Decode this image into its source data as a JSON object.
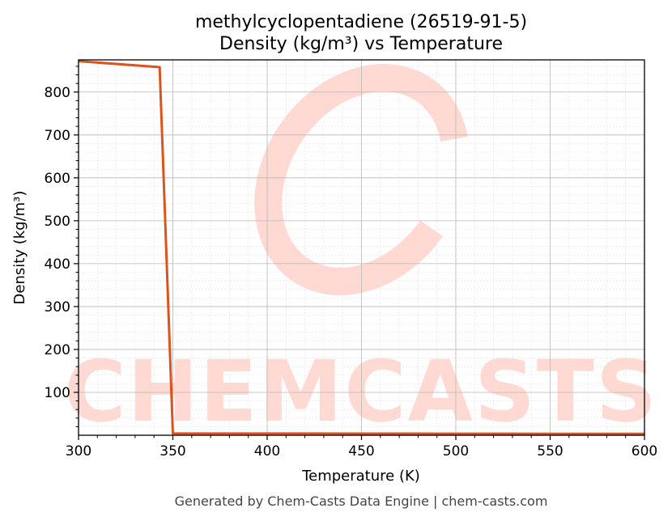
{
  "chart_data": {
    "type": "line",
    "title": "methylcyclopentadiene (26519-91-5)",
    "subtitle": "Density (kg/m³) vs Temperature",
    "xlabel": "Temperature (K)",
    "ylabel": "Density (kg/m³)",
    "xlim": [
      300,
      600
    ],
    "ylim": [
      0,
      875
    ],
    "xticks": [
      300,
      350,
      400,
      450,
      500,
      550,
      600
    ],
    "yticks": [
      100,
      200,
      300,
      400,
      500,
      600,
      700,
      800
    ],
    "grid": true,
    "series": [
      {
        "color": "#d9541e",
        "x": [
          300,
          343,
          350,
          400,
          450,
          500,
          550,
          600
        ],
        "y": [
          872,
          858,
          4,
          4,
          3.8,
          3.6,
          3.4,
          3.2
        ]
      }
    ]
  },
  "watermark": "CHEMCASTS",
  "footer": "Generated by Chem-Casts Data Engine | chem-casts.com"
}
